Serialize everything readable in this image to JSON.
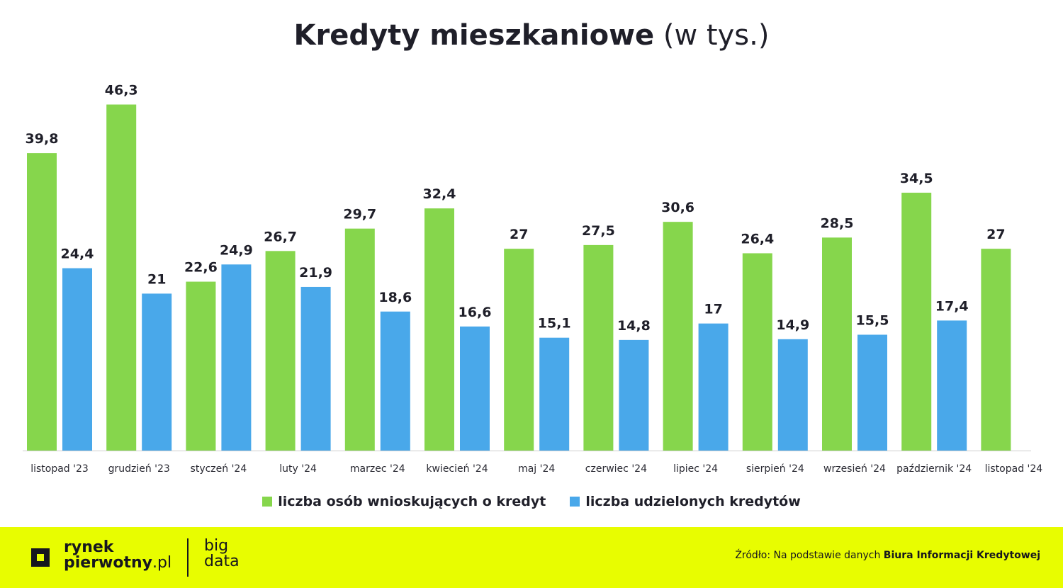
{
  "title": {
    "bold": "Kredyty mieszkaniowe",
    "light": "(w tys.)"
  },
  "chart_data": {
    "type": "bar",
    "title": "Kredyty mieszkaniowe (w tys.)",
    "categories": [
      "listopad '23",
      "grudzień '23",
      "styczeń '24",
      "luty '24",
      "marzec '24",
      "kwiecień '24",
      "maj '24",
      "czerwiec '24",
      "lipiec '24",
      "sierpień '24",
      "wrzesień '24",
      "październik '24",
      "listopad '24"
    ],
    "series": [
      {
        "name": "liczba osób wnioskujących o kredyt",
        "color": "#86d64c",
        "values": [
          39.8,
          46.3,
          22.6,
          26.7,
          29.7,
          32.4,
          27,
          27.5,
          30.6,
          26.4,
          28.5,
          34.5,
          27
        ],
        "labels": [
          "39,8",
          "46,3",
          "22,6",
          "26,7",
          "29,7",
          "32,4",
          "27",
          "27,5",
          "30,6",
          "26,4",
          "28,5",
          "34,5",
          "27"
        ]
      },
      {
        "name": "liczba udzielonych kredytów",
        "color": "#49a8ea",
        "values": [
          24.4,
          21,
          24.9,
          21.9,
          18.6,
          16.6,
          15.1,
          14.8,
          17,
          14.9,
          15.5,
          17.4,
          null
        ],
        "labels": [
          "24,4",
          "21",
          "24,9",
          "21,9",
          "18,6",
          "16,6",
          "15,1",
          "14,8",
          "17",
          "14,9",
          "15,5",
          "17,4",
          ""
        ]
      }
    ],
    "grid": false,
    "legend": "bottom-center"
  },
  "legend": {
    "items": [
      {
        "label": "liczba osób wnioskujących o kredyt",
        "color": "#86d64c"
      },
      {
        "label": "liczba udzielonych kredytów",
        "color": "#49a8ea"
      }
    ]
  },
  "footer": {
    "brand_line1": "rynek",
    "brand_line2": "pierwotny",
    "brand_suffix": ".pl",
    "sub_line1": "big",
    "sub_line2": "data",
    "source_prefix": "Źródło: Na podstawie danych",
    "source_bold": "Biura Informacji Kredytowej",
    "background": "#e8fd00"
  }
}
